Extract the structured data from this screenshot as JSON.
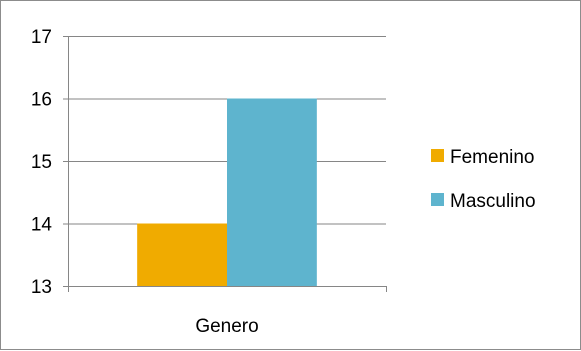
{
  "chart_data": {
    "type": "bar",
    "categories": [
      "Genero"
    ],
    "series": [
      {
        "name": "Femenino",
        "values": [
          14
        ],
        "color": "#f0ab00"
      },
      {
        "name": "Masculino",
        "values": [
          16
        ],
        "color": "#5eb4ce"
      }
    ],
    "title": "",
    "xlabel": "",
    "ylabel": "",
    "ylim": [
      13,
      17
    ],
    "yticks": [
      13,
      14,
      15,
      16,
      17
    ],
    "grid": true,
    "legend": "right"
  },
  "colors": {
    "grid": "#868686",
    "axis": "#868686",
    "border": "#8c8c8c"
  }
}
